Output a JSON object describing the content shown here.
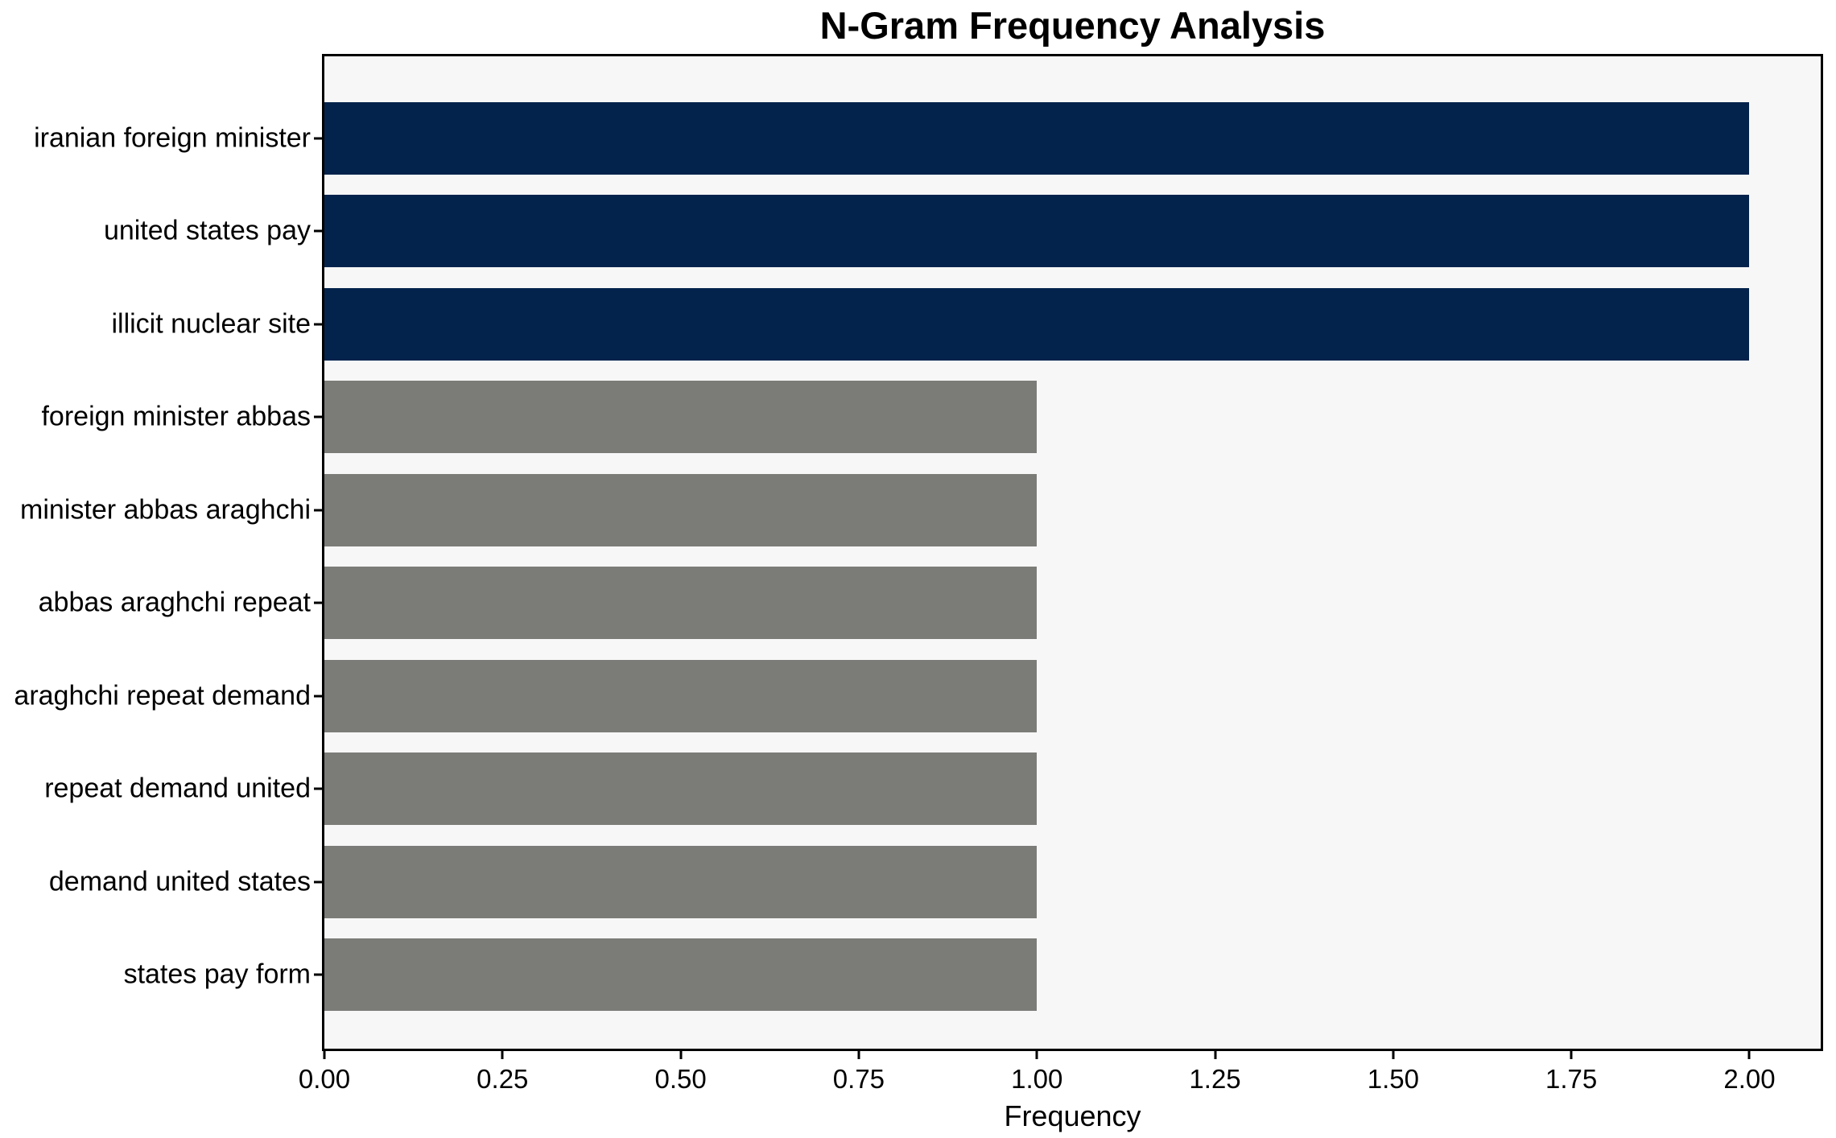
{
  "chart_data": {
    "type": "bar",
    "orientation": "horizontal",
    "title": "N-Gram Frequency Analysis",
    "xlabel": "Frequency",
    "ylabel": "",
    "categories": [
      "iranian foreign minister",
      "united states pay",
      "illicit nuclear site",
      "foreign minister abbas",
      "minister abbas araghchi",
      "abbas araghchi repeat",
      "araghchi repeat demand",
      "repeat demand united",
      "demand united states",
      "states pay form"
    ],
    "values": [
      2,
      2,
      2,
      1,
      1,
      1,
      1,
      1,
      1,
      1
    ],
    "bar_colors": [
      "#03234c",
      "#03234c",
      "#03234c",
      "#7b7b78",
      "#7b7b78",
      "#7b7b78",
      "#7b7b78",
      "#7b7b78",
      "#7b7b78",
      "#7b7b78"
    ],
    "x_ticks": [
      {
        "value": 0.0,
        "label": "0.00"
      },
      {
        "value": 0.25,
        "label": "0.25"
      },
      {
        "value": 0.5,
        "label": "0.50"
      },
      {
        "value": 0.75,
        "label": "0.75"
      },
      {
        "value": 1.0,
        "label": "1.00"
      },
      {
        "value": 1.25,
        "label": "1.25"
      },
      {
        "value": 1.5,
        "label": "1.50"
      },
      {
        "value": 1.75,
        "label": "1.75"
      },
      {
        "value": 2.0,
        "label": "2.00"
      }
    ],
    "xlim": [
      0,
      2.1
    ],
    "grid": false,
    "legend": "none",
    "colors": {
      "highlight_bar": "#03234c",
      "normal_bar": "#7b7b78",
      "plot_background": "#f7f7f7",
      "figure_background": "#ffffff",
      "spine": "#000000",
      "text": "#000000"
    }
  }
}
